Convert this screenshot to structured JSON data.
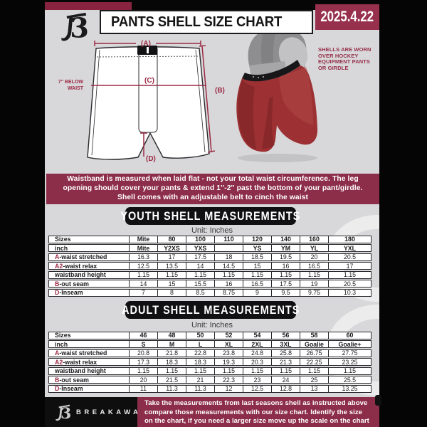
{
  "header": {
    "title": "PANTS SHELL SIZE CHART",
    "date": "2025.4.22"
  },
  "brand": {
    "name": "BREAKAWAY"
  },
  "diagram": {
    "label_a": "(A)",
    "label_b": "(B)",
    "label_c": "(C)",
    "label_d": "(D)",
    "waist_note_line1": "7'' BELOW",
    "waist_note_line2": "WAIST"
  },
  "photo": {
    "caption_lines": [
      "SHELLS ARE WORN",
      "OVER HOCKEY",
      "EQUIPMENT PANTS",
      "OR GIRDLE"
    ]
  },
  "info_banner": {
    "lines": [
      "Waistband is measured when laid flat - not your total waist circumference. The leg",
      "opening should cover your pants & extend 1''-2'' past the bottom of your pant/girdle.",
      "Shell comes with an adjustable belt to cinch the waist"
    ]
  },
  "youth": {
    "heading": "YOUTH SHELL MEASUREMENTS",
    "unit": "Unit: Inches",
    "rows": [
      {
        "prefix": "",
        "label": "Sizes",
        "bold": true,
        "values": [
          "Mite",
          "80",
          "100",
          "110",
          "120",
          "140",
          "160",
          "180"
        ]
      },
      {
        "prefix": "",
        "label": "inch",
        "bold": true,
        "values": [
          "Mite",
          "Y2XS",
          "YXS",
          "",
          "YS",
          "YM",
          "YL",
          "YXL"
        ]
      },
      {
        "prefix": "A",
        "label": "-waist stretched",
        "bold": false,
        "values": [
          "16.3",
          "17",
          "17.5",
          "18",
          "18.5",
          "19.5",
          "20",
          "20.5"
        ]
      },
      {
        "prefix": "A2",
        "label": "-waist relax",
        "bold": false,
        "values": [
          "12.5",
          "13.5",
          "14",
          "14.5",
          "15",
          "16",
          "16.5",
          "17"
        ]
      },
      {
        "prefix": "",
        "label": "waistband height",
        "bold": false,
        "values": [
          "1.15",
          "1.15",
          "1.15",
          "1.15",
          "1.15",
          "1.15",
          "1.15",
          "1.15"
        ]
      },
      {
        "prefix": "B",
        "label": "-out seam",
        "bold": false,
        "values": [
          "14",
          "15",
          "15.5",
          "16",
          "16.5",
          "17.5",
          "19",
          "20.5"
        ]
      },
      {
        "prefix": "D",
        "label": "-Inseam",
        "bold": false,
        "values": [
          "7",
          "8",
          "8.5",
          "8.75",
          "9",
          "9.5",
          "9.75",
          "10.3"
        ]
      }
    ]
  },
  "adult": {
    "heading": "ADULT SHELL MEASUREMENTS",
    "unit": "Unit: Inches",
    "rows": [
      {
        "prefix": "",
        "label": "Sizes",
        "bold": true,
        "values": [
          "46",
          "48",
          "50",
          "52",
          "54",
          "56",
          "58",
          "60"
        ]
      },
      {
        "prefix": "",
        "label": "inch",
        "bold": true,
        "values": [
          "S",
          "M",
          "L",
          "XL",
          "2XL",
          "3XL",
          "Goalie",
          "Goalie+"
        ]
      },
      {
        "prefix": "A",
        "label": "-waist stretched",
        "bold": false,
        "values": [
          "20.8",
          "21.8",
          "22.8",
          "23.8",
          "24.8",
          "25.8",
          "26.75",
          "27.75"
        ]
      },
      {
        "prefix": "A2",
        "label": "-waist relax",
        "bold": false,
        "values": [
          "17.3",
          "18.3",
          "18.3",
          "19.3",
          "20.3",
          "21.3",
          "22.25",
          "23.25"
        ]
      },
      {
        "prefix": "",
        "label": "waistband height",
        "bold": false,
        "values": [
          "1.15",
          "1.15",
          "1.15",
          "1.15",
          "1.15",
          "1.15",
          "1.15",
          "1.15"
        ]
      },
      {
        "prefix": "B",
        "label": "-out seam",
        "bold": false,
        "values": [
          "20",
          "21.5",
          "21",
          "22.3",
          "23",
          "24",
          "25",
          "25.5"
        ]
      },
      {
        "prefix": "D",
        "label": "-Inseam",
        "bold": false,
        "values": [
          "11",
          "11.3",
          "11.3",
          "12",
          "12.5",
          "12.8",
          "13",
          "13.25"
        ]
      }
    ]
  },
  "footer": {
    "note_lines": [
      "Take the measurements from last seasons shell as instructed above",
      "compare those measurements  with our size chart. Identify the size",
      "on the chart, if you need a larger size move up the scale on the chart"
    ]
  },
  "colors": {
    "maroon": "#8C2E49",
    "maroon_dark": "#88243F",
    "maroon_bright": "#97304C",
    "doc_bg": "#D8D8DA",
    "black": "#0B0B0B",
    "accent_text": "#9C2B45",
    "shell_red": "#9C3032"
  }
}
